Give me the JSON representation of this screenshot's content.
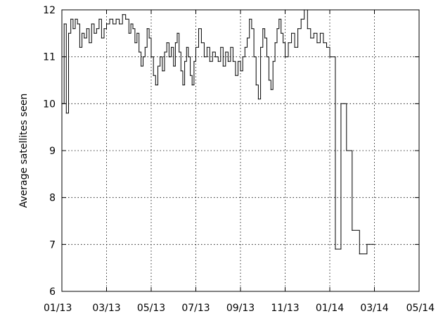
{
  "chart_data": {
    "type": "line",
    "title": "",
    "xlabel": "",
    "ylabel": "Average satellites seen",
    "ylim": [
      6,
      12
    ],
    "yticks": [
      6,
      7,
      8,
      9,
      10,
      11,
      12
    ],
    "xticks": [
      "01/13",
      "03/13",
      "05/13",
      "07/13",
      "09/13",
      "11/13",
      "01/14",
      "03/14",
      "05/14"
    ],
    "grid": true,
    "series": [
      {
        "points": [
          [
            "01/13",
            10.0
          ],
          [
            "01/13",
            11.7
          ],
          [
            "01/13",
            9.8
          ],
          [
            "01/13",
            11.5
          ],
          [
            "01/13",
            11.8
          ],
          [
            "01/13",
            11.6
          ],
          [
            "01/13",
            11.8
          ],
          [
            "01/13",
            11.7
          ],
          [
            "01/13",
            11.2
          ],
          [
            "01/13",
            11.5
          ],
          [
            "02/13",
            11.4
          ],
          [
            "02/13",
            11.6
          ],
          [
            "02/13",
            11.3
          ],
          [
            "02/13",
            11.7
          ],
          [
            "02/13",
            11.5
          ],
          [
            "02/13",
            11.6
          ],
          [
            "02/13",
            11.8
          ],
          [
            "02/13",
            11.4
          ],
          [
            "02/13",
            11.6
          ],
          [
            "03/13",
            11.7
          ],
          [
            "03/13",
            11.8
          ],
          [
            "03/13",
            11.7
          ],
          [
            "03/13",
            11.8
          ],
          [
            "03/13",
            11.7
          ],
          [
            "03/13",
            11.9
          ],
          [
            "03/13",
            11.8
          ],
          [
            "04/13",
            11.5
          ],
          [
            "04/13",
            11.7
          ],
          [
            "04/13",
            11.6
          ],
          [
            "04/13",
            11.3
          ],
          [
            "04/13",
            11.5
          ],
          [
            "04/13",
            11.1
          ],
          [
            "04/13",
            10.8
          ],
          [
            "04/13",
            11.0
          ],
          [
            "04/13",
            11.2
          ],
          [
            "04/13",
            11.6
          ],
          [
            "04/13",
            11.4
          ],
          [
            "05/13",
            11.0
          ],
          [
            "05/13",
            10.6
          ],
          [
            "05/13",
            10.4
          ],
          [
            "05/13",
            10.8
          ],
          [
            "05/13",
            11.0
          ],
          [
            "05/13",
            10.7
          ],
          [
            "05/13",
            11.1
          ],
          [
            "05/13",
            11.3
          ],
          [
            "05/13",
            11.0
          ],
          [
            "05/13",
            11.2
          ],
          [
            "06/13",
            10.8
          ],
          [
            "06/13",
            11.3
          ],
          [
            "06/13",
            11.5
          ],
          [
            "06/13",
            11.1
          ],
          [
            "06/13",
            10.7
          ],
          [
            "06/13",
            10.4
          ],
          [
            "06/13",
            10.9
          ],
          [
            "06/13",
            11.2
          ],
          [
            "06/13",
            11.0
          ],
          [
            "06/13",
            10.6
          ],
          [
            "06/13",
            10.4
          ],
          [
            "06/13",
            10.9
          ],
          [
            "07/13",
            11.2
          ],
          [
            "07/13",
            11.6
          ],
          [
            "07/13",
            11.3
          ],
          [
            "07/13",
            11.0
          ],
          [
            "07/13",
            11.2
          ],
          [
            "07/13",
            10.9
          ],
          [
            "07/13",
            11.1
          ],
          [
            "07/13",
            11.0
          ],
          [
            "08/13",
            10.9
          ],
          [
            "08/13",
            11.2
          ],
          [
            "08/13",
            10.8
          ],
          [
            "08/13",
            11.1
          ],
          [
            "08/13",
            10.9
          ],
          [
            "08/13",
            11.2
          ],
          [
            "08/13",
            10.9
          ],
          [
            "08/13",
            10.6
          ],
          [
            "08/13",
            10.9
          ],
          [
            "09/13",
            10.7
          ],
          [
            "09/13",
            11.0
          ],
          [
            "09/13",
            11.2
          ],
          [
            "09/13",
            11.4
          ],
          [
            "09/13",
            11.8
          ],
          [
            "09/13",
            11.6
          ],
          [
            "09/13",
            11.0
          ],
          [
            "09/13",
            10.4
          ],
          [
            "09/13",
            10.1
          ],
          [
            "09/13",
            11.2
          ],
          [
            "10/13",
            11.6
          ],
          [
            "10/13",
            11.4
          ],
          [
            "10/13",
            11.0
          ],
          [
            "10/13",
            10.5
          ],
          [
            "10/13",
            10.3
          ],
          [
            "10/13",
            10.9
          ],
          [
            "10/13",
            11.3
          ],
          [
            "10/13",
            11.6
          ],
          [
            "10/13",
            11.8
          ],
          [
            "10/13",
            11.5
          ],
          [
            "10/13",
            11.3
          ],
          [
            "11/13",
            11.0
          ],
          [
            "11/13",
            11.3
          ],
          [
            "11/13",
            11.5
          ],
          [
            "11/13",
            11.2
          ],
          [
            "11/13",
            11.6
          ],
          [
            "11/13",
            11.8
          ],
          [
            "11/13",
            12.0
          ],
          [
            "12/13",
            11.6
          ],
          [
            "12/13",
            11.4
          ],
          [
            "12/13",
            11.5
          ],
          [
            "12/13",
            11.3
          ],
          [
            "12/13",
            11.5
          ],
          [
            "12/13",
            11.3
          ],
          [
            "12/13",
            11.2
          ],
          [
            "01/14",
            11.0
          ],
          [
            "01/14",
            6.9
          ],
          [
            "01/14",
            10.0
          ],
          [
            "01/14",
            9.0
          ],
          [
            "02/14",
            7.3
          ],
          [
            "02/14",
            6.8
          ],
          [
            "02/14",
            7.0
          ],
          [
            "03/14",
            7.0
          ]
        ]
      }
    ]
  }
}
